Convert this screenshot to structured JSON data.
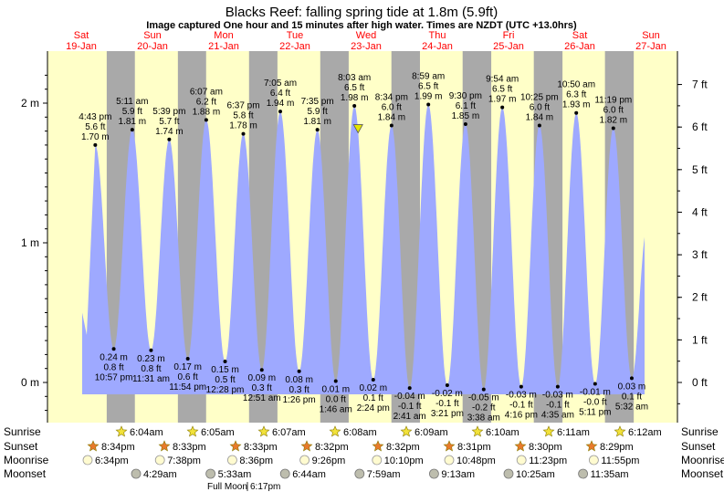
{
  "chart_data": {
    "type": "area",
    "title": "Blacks Reef: falling  spring tide at 1.8m (5.9ft)",
    "subtitle": "Image captured One hour and 15 minutes after high water. Times are NZDT (UTC +13.0hrs)",
    "ylim_m": [
      -0.25,
      2.22
    ],
    "left_ticks": [
      "2 m",
      "1 m",
      "0 m"
    ],
    "left_tick_values": [
      2,
      1,
      0
    ],
    "right_ticks": [
      "7 ft",
      "6 ft",
      "5 ft",
      "4 ft",
      "3 ft",
      "2 ft",
      "1 ft",
      "0 ft"
    ],
    "right_tick_values_ft": [
      7,
      6,
      5,
      4,
      3,
      2,
      1,
      0
    ],
    "days": [
      {
        "dow": "Sat",
        "date": "19-Jan",
        "day": 0
      },
      {
        "dow": "Sun",
        "date": "20-Jan",
        "day": 1
      },
      {
        "dow": "Mon",
        "date": "21-Jan",
        "day": 2
      },
      {
        "dow": "Tue",
        "date": "22-Jan",
        "day": 3
      },
      {
        "dow": "Wed",
        "date": "23-Jan",
        "day": 4
      },
      {
        "dow": "Thu",
        "date": "24-Jan",
        "day": 5
      },
      {
        "dow": "Fri",
        "date": "25-Jan",
        "day": 6
      },
      {
        "dow": "Sat",
        "date": "26-Jan",
        "day": 7
      },
      {
        "dow": "Sun",
        "date": "27-Jan",
        "day": 8
      }
    ],
    "tides": [
      {
        "type": "high",
        "day": 0,
        "hour": 16.72,
        "time": "4:43 pm",
        "ft": "5.6 ft",
        "m": "1.70 m",
        "value": 1.7
      },
      {
        "type": "low",
        "day": 0,
        "hour": 22.95,
        "time": "10:57 pm",
        "ft": "0.8 ft",
        "m": "0.24 m",
        "value": 0.24
      },
      {
        "type": "high",
        "day": 1,
        "hour": 5.18,
        "time": "5:11 am",
        "ft": "5.9 ft",
        "m": "1.81 m",
        "value": 1.81
      },
      {
        "type": "low",
        "day": 1,
        "hour": 11.52,
        "time": "11:31 am",
        "ft": "0.8 ft",
        "m": "0.23 m",
        "value": 0.23
      },
      {
        "type": "high",
        "day": 1,
        "hour": 17.65,
        "time": "5:39 pm",
        "ft": "5.7 ft",
        "m": "1.74 m",
        "value": 1.74
      },
      {
        "type": "low",
        "day": 1,
        "hour": 23.9,
        "time": "11:54 pm",
        "ft": "0.6 ft",
        "m": "0.17 m",
        "value": 0.17
      },
      {
        "type": "high",
        "day": 2,
        "hour": 6.12,
        "time": "6:07 am",
        "ft": "6.2 ft",
        "m": "1.88 m",
        "value": 1.88
      },
      {
        "type": "low",
        "day": 2,
        "hour": 12.47,
        "time": "12:28 pm",
        "ft": "0.5 ft",
        "m": "0.15 m",
        "value": 0.15
      },
      {
        "type": "high",
        "day": 2,
        "hour": 18.62,
        "time": "6:37 pm",
        "ft": "5.8 ft",
        "m": "1.78 m",
        "value": 1.78
      },
      {
        "type": "low",
        "day": 3,
        "hour": 0.85,
        "time": "12:51 am",
        "ft": "0.3 ft",
        "m": "0.09 m",
        "value": 0.09
      },
      {
        "type": "high",
        "day": 3,
        "hour": 7.08,
        "time": "7:05 am",
        "ft": "6.4 ft",
        "m": "1.94 m",
        "value": 1.94
      },
      {
        "type": "low",
        "day": 3,
        "hour": 13.43,
        "time": "1:26 pm",
        "ft": "0.3 ft",
        "m": "0.08 m",
        "value": 0.08
      },
      {
        "type": "high",
        "day": 3,
        "hour": 19.58,
        "time": "7:35 pm",
        "ft": "5.9 ft",
        "m": "1.81 m",
        "value": 1.81
      },
      {
        "type": "low",
        "day": 4,
        "hour": 1.77,
        "time": "1:46 am",
        "ft": "0.0 ft",
        "m": "0.01 m",
        "value": 0.01
      },
      {
        "type": "high",
        "day": 4,
        "hour": 8.05,
        "time": "8:03 am",
        "ft": "6.5 ft",
        "m": "1.98 m",
        "value": 1.98
      },
      {
        "type": "low",
        "day": 4,
        "hour": 14.4,
        "time": "2:24 pm",
        "ft": "0.1 ft",
        "m": "0.02 m",
        "value": 0.02
      },
      {
        "type": "high",
        "day": 4,
        "hour": 20.57,
        "time": "8:34 pm",
        "ft": "6.0 ft",
        "m": "1.84 m",
        "value": 1.84
      },
      {
        "type": "low",
        "day": 5,
        "hour": 2.68,
        "time": "2:41 am",
        "ft": "-0.1 ft",
        "m": "-0.04 m",
        "value": -0.04
      },
      {
        "type": "high",
        "day": 5,
        "hour": 8.98,
        "time": "8:59 am",
        "ft": "6.5 ft",
        "m": "1.99 m",
        "value": 1.99
      },
      {
        "type": "low",
        "day": 5,
        "hour": 15.35,
        "time": "3:21 pm",
        "ft": "-0.1 ft",
        "m": "-0.02 m",
        "value": -0.02
      },
      {
        "type": "high",
        "day": 5,
        "hour": 21.5,
        "time": "9:30 pm",
        "ft": "6.1 ft",
        "m": "1.85 m",
        "value": 1.85
      },
      {
        "type": "low",
        "day": 6,
        "hour": 3.63,
        "time": "3:38 am",
        "ft": "-0.2 ft",
        "m": "-0.05 m",
        "value": -0.05
      },
      {
        "type": "high",
        "day": 6,
        "hour": 9.9,
        "time": "9:54 am",
        "ft": "6.5 ft",
        "m": "1.97 m",
        "value": 1.97
      },
      {
        "type": "low",
        "day": 6,
        "hour": 16.27,
        "time": "4:16 pm",
        "ft": "-0.1 ft",
        "m": "-0.03 m",
        "value": -0.03
      },
      {
        "type": "high",
        "day": 6,
        "hour": 22.42,
        "time": "10:25 pm",
        "ft": "6.0 ft",
        "m": "1.84 m",
        "value": 1.84
      },
      {
        "type": "low",
        "day": 7,
        "hour": 4.58,
        "time": "4:35 am",
        "ft": "-0.1 ft",
        "m": "-0.03 m",
        "value": -0.03
      },
      {
        "type": "high",
        "day": 7,
        "hour": 10.83,
        "time": "10:50 am",
        "ft": "6.3 ft",
        "m": "1.93 m",
        "value": 1.93
      },
      {
        "type": "low",
        "day": 7,
        "hour": 17.18,
        "time": "5:11 pm",
        "ft": "-0.0 ft",
        "m": "-0.01 m",
        "value": -0.01
      },
      {
        "type": "high",
        "day": 7,
        "hour": 23.32,
        "time": "11:19 pm",
        "ft": "6.0 ft",
        "m": "1.82 m",
        "value": 1.82
      },
      {
        "type": "low",
        "day": 8,
        "hour": 5.53,
        "time": "5:32 am",
        "ft": "0.1 ft",
        "m": "0.03 m",
        "value": 0.03
      }
    ],
    "current_marker": {
      "day": 4,
      "hour": 9.3,
      "value": 1.82
    },
    "sun": [
      {
        "day": 0,
        "sunrise": "",
        "sunset": ""
      },
      {
        "day": 1,
        "sunrise": "6:04am",
        "sunset": "8:34pm",
        "rise_hour": 6.07,
        "set_hour": 20.57
      },
      {
        "day": 2,
        "sunrise": "6:05am",
        "sunset": "8:33pm",
        "rise_hour": 6.08,
        "set_hour": 20.55
      },
      {
        "day": 3,
        "sunrise": "6:07am",
        "sunset": "8:33pm",
        "rise_hour": 6.12,
        "set_hour": 20.55
      },
      {
        "day": 4,
        "sunrise": "6:08am",
        "sunset": "8:32pm",
        "rise_hour": 6.13,
        "set_hour": 20.53
      },
      {
        "day": 5,
        "sunrise": "6:09am",
        "sunset": "8:32pm",
        "rise_hour": 6.15,
        "set_hour": 20.53
      },
      {
        "day": 6,
        "sunrise": "6:10am",
        "sunset": "8:31pm",
        "rise_hour": 6.17,
        "set_hour": 20.52
      },
      {
        "day": 7,
        "sunrise": "6:11am",
        "sunset": "8:30pm",
        "rise_hour": 6.18,
        "set_hour": 20.5
      },
      {
        "day": 8,
        "sunrise": "6:12am",
        "sunset": "8:29pm",
        "rise_hour": 6.2,
        "set_hour": 20.48
      }
    ],
    "sunset_prev": {
      "day": 0,
      "set_hour": 20.58
    },
    "moonrise": [
      {
        "day": 1,
        "time": "6:34pm"
      },
      {
        "day": 2,
        "time": "7:38pm"
      },
      {
        "day": 3,
        "time": "8:36pm"
      },
      {
        "day": 4,
        "time": "9:26pm"
      },
      {
        "day": 5,
        "time": "10:10pm"
      },
      {
        "day": 6,
        "time": "10:48pm"
      },
      {
        "day": 7,
        "time": "11:23pm"
      },
      {
        "day": 8,
        "time": "11:55pm"
      }
    ],
    "moonset": [
      {
        "day": 1,
        "time": "4:29am"
      },
      {
        "day": 2,
        "time": "5:33am"
      },
      {
        "day": 3,
        "time": "6:44am"
      },
      {
        "day": 4,
        "time": "7:59am"
      },
      {
        "day": 5,
        "time": "9:13am"
      },
      {
        "day": 6,
        "time": "10:25am"
      },
      {
        "day": 7,
        "time": "11:35am"
      }
    ],
    "full_moon": {
      "label": "Full Moon",
      "time": "6:17pm"
    },
    "row_labels": {
      "sunrise": "Sunrise",
      "sunset": "Sunset",
      "moonrise": "Moonrise",
      "moonset": "Moonset"
    },
    "colors": {
      "day": "#ffffc8",
      "night": "#a9a9a9",
      "tide": "#9ea9ff",
      "day_label": "#ff0000",
      "marker": "#e6e600"
    }
  }
}
